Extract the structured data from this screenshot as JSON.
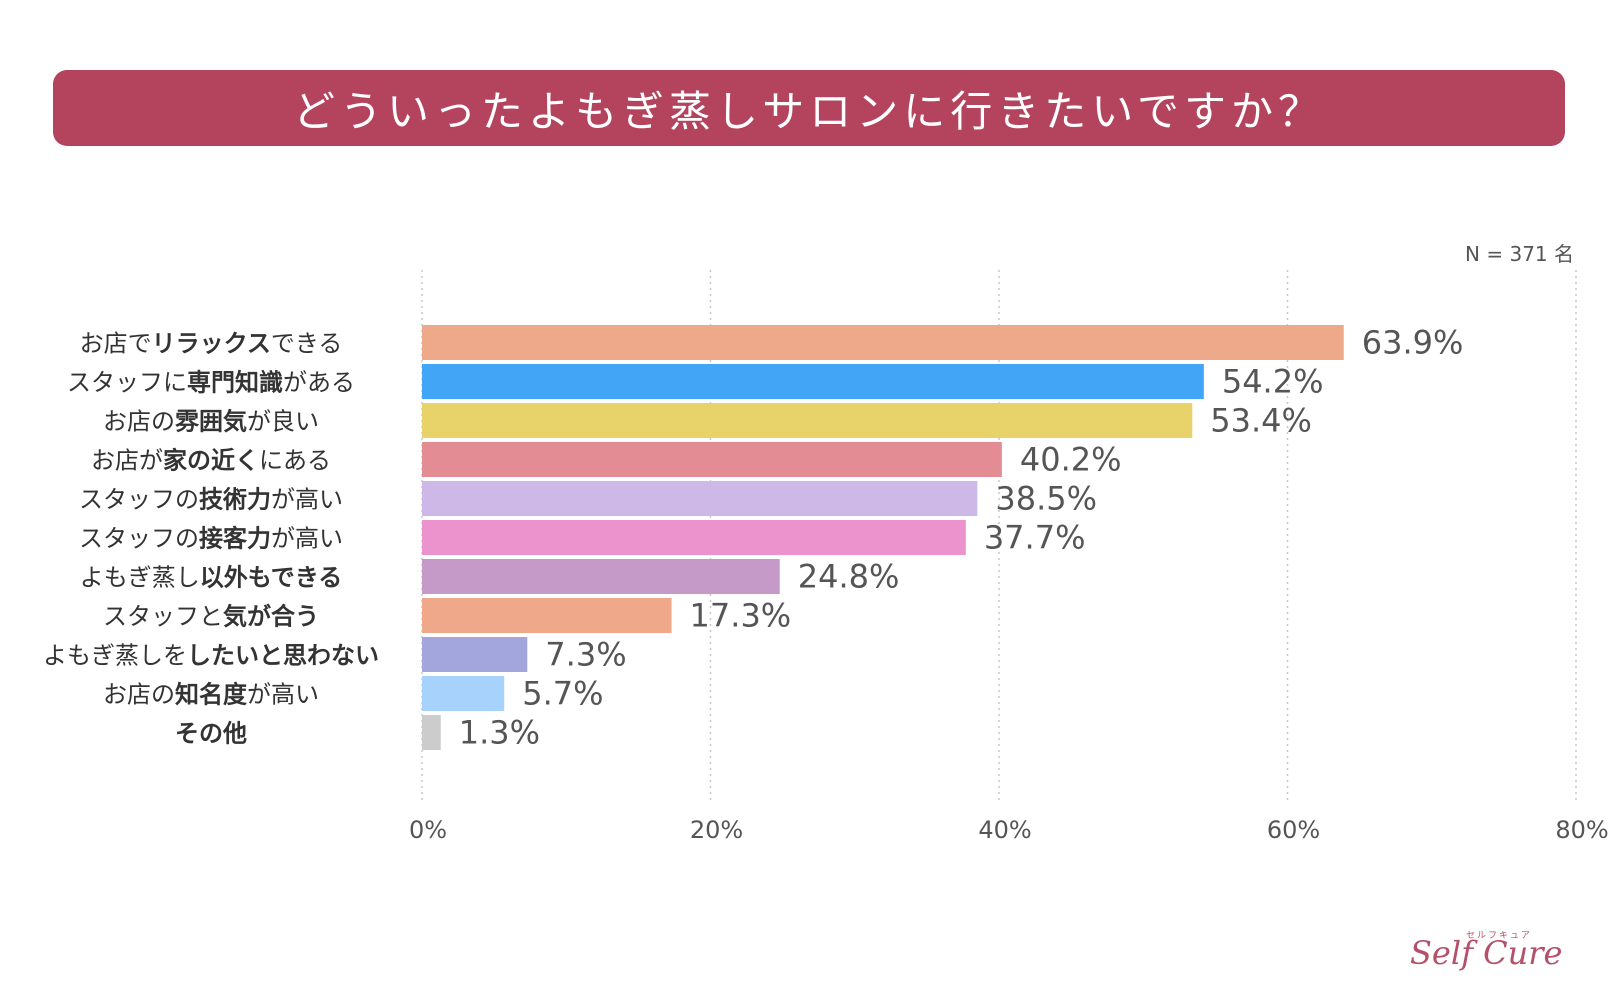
{
  "title": "どういったよもぎ蒸しサロンに行きたいですか？",
  "sample_size": "N = 371 名",
  "colors": {
    "banner": "#b4435e",
    "grid": "#c8c8c8",
    "label": "#555555",
    "text": "#333333"
  },
  "chart_data": {
    "type": "bar",
    "orientation": "horizontal",
    "title": "どういったよもぎ蒸しサロンに行きたいですか？",
    "categories": [
      {
        "name": "お店でリラックスできる",
        "parts": [
          {
            "t": "お店で",
            "b": false
          },
          {
            "t": "リラックス",
            "b": true
          },
          {
            "t": "できる",
            "b": false
          }
        ]
      },
      {
        "name": "スタッフに専門知識がある",
        "parts": [
          {
            "t": "スタッフに",
            "b": false
          },
          {
            "t": "専門知識",
            "b": true
          },
          {
            "t": "がある",
            "b": false
          }
        ]
      },
      {
        "name": "お店の雰囲気が良い",
        "parts": [
          {
            "t": "お店の",
            "b": false
          },
          {
            "t": "雰囲気",
            "b": true
          },
          {
            "t": "が良い",
            "b": false
          }
        ]
      },
      {
        "name": "お店が家の近くにある",
        "parts": [
          {
            "t": "お店が",
            "b": false
          },
          {
            "t": "家の近く",
            "b": true
          },
          {
            "t": "にある",
            "b": false
          }
        ]
      },
      {
        "name": "スタッフの技術力が高い",
        "parts": [
          {
            "t": "スタッフの",
            "b": false
          },
          {
            "t": "技術力",
            "b": true
          },
          {
            "t": "が高い",
            "b": false
          }
        ]
      },
      {
        "name": "スタッフの接客力が高い",
        "parts": [
          {
            "t": "スタッフの",
            "b": false
          },
          {
            "t": "接客力",
            "b": true
          },
          {
            "t": "が高い",
            "b": false
          }
        ]
      },
      {
        "name": "よもぎ蒸し以外もできる",
        "parts": [
          {
            "t": "よもぎ蒸し",
            "b": false
          },
          {
            "t": "以外もできる",
            "b": true
          }
        ]
      },
      {
        "name": "スタッフと気が合う",
        "parts": [
          {
            "t": "スタッフと",
            "b": false
          },
          {
            "t": "気が合う",
            "b": true
          }
        ]
      },
      {
        "name": "よもぎ蒸しをしたいと思わない",
        "parts": [
          {
            "t": "よもぎ蒸しを",
            "b": false
          },
          {
            "t": "したいと思わない",
            "b": true
          }
        ]
      },
      {
        "name": "お店の知名度が高い",
        "parts": [
          {
            "t": "お店の",
            "b": false
          },
          {
            "t": "知名度",
            "b": true
          },
          {
            "t": "が高い",
            "b": false
          }
        ]
      },
      {
        "name": "その他",
        "parts": [
          {
            "t": "その他",
            "b": true
          }
        ]
      }
    ],
    "values": [
      63.9,
      54.2,
      53.4,
      40.2,
      38.5,
      37.7,
      24.8,
      17.3,
      7.3,
      5.7,
      1.3
    ],
    "value_labels": [
      "63.9%",
      "54.2%",
      "53.4%",
      "40.2%",
      "38.5%",
      "37.7%",
      "24.8%",
      "17.3%",
      "7.3%",
      "5.7%",
      "1.3%"
    ],
    "bar_colors": [
      "#eea88a",
      "#42a5f5",
      "#e8d36a",
      "#e48c94",
      "#cdb8e8",
      "#ec92cc",
      "#c59ac9",
      "#f0a88a",
      "#a3a6dc",
      "#a6d2fb",
      "#cccccc"
    ],
    "xlim": [
      0,
      80
    ],
    "xticks": [
      0,
      20,
      40,
      60,
      80
    ],
    "xtick_labels": [
      "0%",
      "20%",
      "40%",
      "60%",
      "80%"
    ],
    "grid": true,
    "xlabel": "",
    "ylabel": ""
  },
  "logo": {
    "kana": "セルフキュア",
    "word": "Self Cure"
  }
}
